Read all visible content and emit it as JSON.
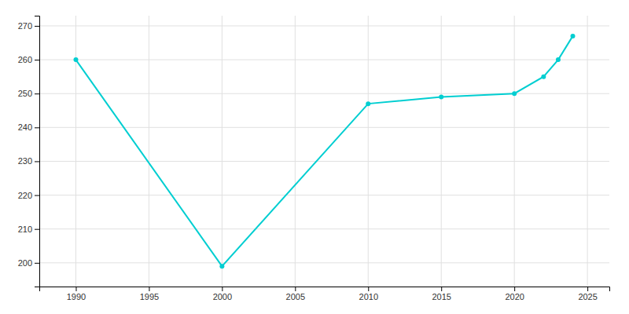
{
  "chart_data": {
    "type": "line",
    "x": [
      1990,
      2000,
      2010,
      2015,
      2020,
      2022,
      2023,
      2024
    ],
    "values": [
      260,
      199,
      247,
      249,
      250,
      255,
      260,
      267
    ],
    "color": "#00CED1",
    "marker": "circle",
    "xlim": [
      1987.5,
      2026.5
    ],
    "ylim": [
      193,
      273
    ],
    "xticks": [
      1990,
      1995,
      2000,
      2005,
      2010,
      2015,
      2020,
      2025
    ],
    "yticks": [
      200,
      210,
      220,
      230,
      240,
      250,
      260,
      270
    ],
    "grid": true
  }
}
